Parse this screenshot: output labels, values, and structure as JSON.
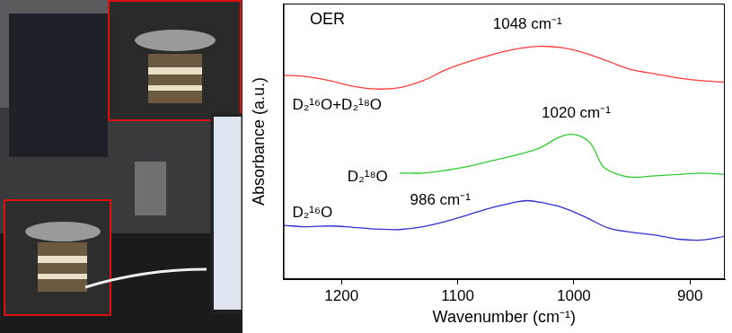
{
  "chart_data": {
    "type": "line",
    "title": "OER",
    "x_label": "Wavenumber (cm⁻¹)",
    "y_label": "Absorbance (a.u.)",
    "xlim": [
      1250,
      870
    ],
    "xticks": [
      1200,
      1100,
      1000,
      900
    ],
    "ylim": [
      0,
      10
    ],
    "tick_labels": "x",
    "grid": false,
    "series": [
      {
        "name": "D₂¹⁶O+D₂¹⁸O",
        "color": "#ff3b3b",
        "x": [
          1250,
          1230,
          1210,
          1190,
          1170,
          1150,
          1130,
          1110,
          1090,
          1070,
          1050,
          1030,
          1010,
          990,
          970,
          950,
          930,
          910,
          890,
          870
        ],
        "values": [
          7.4,
          7.35,
          7.2,
          7.0,
          6.9,
          6.95,
          7.2,
          7.6,
          7.9,
          8.15,
          8.35,
          8.45,
          8.4,
          8.2,
          7.9,
          7.6,
          7.45,
          7.3,
          7.2,
          7.15
        ]
      },
      {
        "name": "D₂¹⁸O",
        "color": "#2ecc2e",
        "x": [
          1150,
          1130,
          1110,
          1090,
          1070,
          1050,
          1030,
          1015,
          1005,
          995,
          985,
          975,
          965,
          950,
          930,
          910,
          890,
          870
        ],
        "values": [
          3.85,
          3.85,
          3.95,
          4.1,
          4.3,
          4.5,
          4.75,
          5.1,
          5.25,
          5.2,
          4.9,
          4.1,
          3.85,
          3.7,
          3.75,
          3.8,
          3.85,
          3.8
        ]
      },
      {
        "name": "D₂¹⁶O",
        "color": "#3030d0",
        "x": [
          1250,
          1230,
          1210,
          1190,
          1170,
          1150,
          1130,
          1110,
          1090,
          1070,
          1050,
          1040,
          1030,
          1010,
          990,
          970,
          950,
          930,
          910,
          890,
          870
        ],
        "values": [
          1.95,
          1.9,
          1.93,
          1.88,
          1.82,
          1.8,
          1.9,
          2.1,
          2.35,
          2.6,
          2.8,
          2.85,
          2.8,
          2.6,
          2.25,
          1.85,
          1.7,
          1.6,
          1.45,
          1.42,
          1.55
        ]
      }
    ],
    "annotations": [
      {
        "text": "1048 cm⁻¹",
        "x": 1040,
        "y": 9.25
      },
      {
        "text": "1020 cm⁻¹",
        "x": 998,
        "y": 6.0
      },
      {
        "text": "986 cm⁻¹",
        "x": 1115,
        "y": 2.85
      }
    ]
  }
}
